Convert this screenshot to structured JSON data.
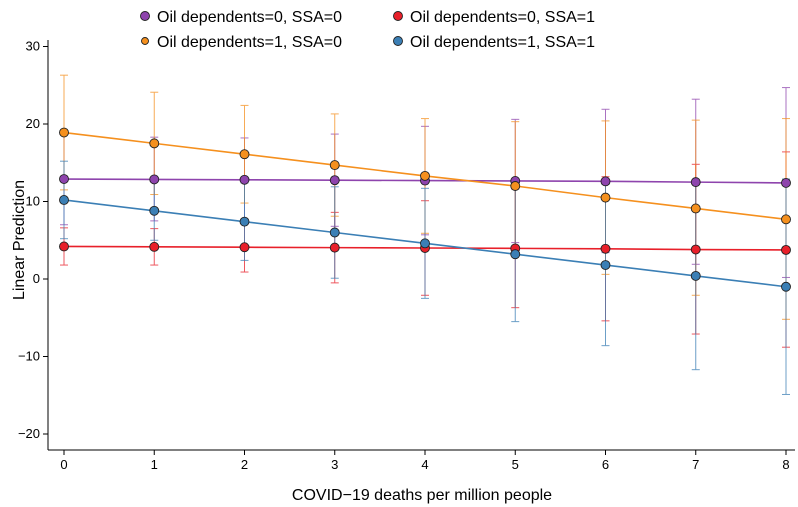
{
  "chart_data": {
    "type": "line",
    "title": "",
    "xlabel": "COVID−19 deaths per million people",
    "ylabel": "Linear Prediction",
    "x": [
      0,
      1,
      2,
      3,
      4,
      5,
      6,
      7,
      8
    ],
    "xlim": [
      0,
      8
    ],
    "ylim": [
      -21,
      32
    ],
    "xticks": [
      "0",
      "1",
      "2",
      "3",
      "4",
      "5",
      "6",
      "7",
      "8"
    ],
    "yticks": [
      {
        "value": 30,
        "label": "30"
      },
      {
        "value": 20,
        "label": "20"
      },
      {
        "value": 10,
        "label": "10"
      },
      {
        "value": 0,
        "label": "0"
      },
      {
        "value": -10,
        "label": "−10"
      },
      {
        "value": -20,
        "label": "−20"
      }
    ],
    "legend_position": "top",
    "series": [
      {
        "name": "Oil dependents=0, SSA=0",
        "color": "#8e44ad",
        "values": [
          12.9,
          12.85,
          12.8,
          12.75,
          12.7,
          12.65,
          12.6,
          12.5,
          12.4
        ],
        "lower": [
          7.0,
          7.5,
          7.4,
          6.8,
          5.7,
          4.7,
          3.4,
          1.9,
          0.2
        ],
        "upper": [
          18.9,
          18.3,
          18.2,
          18.7,
          19.7,
          20.6,
          21.9,
          23.2,
          24.7
        ]
      },
      {
        "name": "Oil dependents=0, SSA=1",
        "color": "#e8202a",
        "values": [
          4.2,
          4.15,
          4.1,
          4.05,
          4.0,
          3.95,
          3.9,
          3.8,
          3.75
        ],
        "lower": [
          1.8,
          1.8,
          0.9,
          -0.5,
          -2.1,
          -3.7,
          -5.4,
          -7.1,
          -8.8
        ],
        "upper": [
          6.6,
          6.5,
          7.3,
          8.6,
          10.1,
          11.6,
          13.2,
          14.8,
          16.4
        ]
      },
      {
        "name": "Oil dependents=1, SSA=0",
        "color": "#f5901e",
        "values": [
          18.9,
          17.5,
          16.1,
          14.7,
          13.3,
          12.0,
          10.5,
          9.1,
          7.7
        ],
        "lower": [
          11.5,
          10.9,
          9.8,
          8.1,
          5.9,
          3.6,
          0.6,
          -2.1,
          -5.2
        ],
        "upper": [
          26.3,
          24.1,
          22.4,
          21.3,
          20.7,
          20.3,
          20.4,
          20.5,
          20.7
        ]
      },
      {
        "name": "Oil dependents=1, SSA=1",
        "color": "#3b7fb5",
        "values": [
          10.2,
          8.8,
          7.4,
          6.0,
          4.6,
          3.2,
          1.8,
          0.4,
          -1.0
        ],
        "lower": [
          5.2,
          5.0,
          2.4,
          0.1,
          -2.5,
          -5.5,
          -8.6,
          -11.7,
          -14.9
        ],
        "upper": [
          15.2,
          12.7,
          12.4,
          11.9,
          11.7,
          11.9,
          12.2,
          12.5,
          12.9
        ]
      }
    ]
  }
}
